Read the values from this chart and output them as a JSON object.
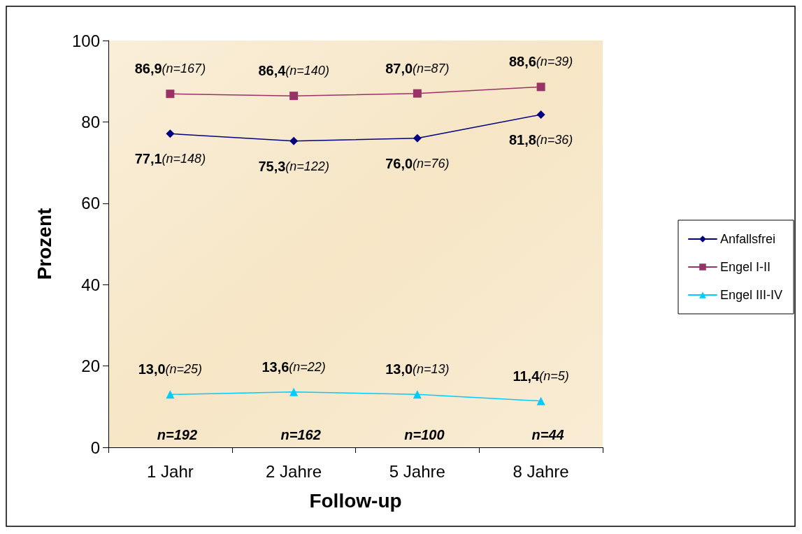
{
  "chart_data": {
    "type": "line",
    "xlabel": "Follow-up",
    "ylabel": "Prozent",
    "categories": [
      "1 Jahr",
      "2 Jahre",
      "5 Jahre",
      "8 Jahre"
    ],
    "series": [
      {
        "name": "Anfallsfrei",
        "color": "#000080",
        "marker": "diamond",
        "values": [
          77.1,
          75.3,
          76.0,
          81.8
        ],
        "value_labels": [
          "77,1(n=148)",
          "75,3(n=122)",
          "76,0(n=76)",
          "81,8(n=36)"
        ]
      },
      {
        "name": "Engel I-II",
        "color": "#993366",
        "marker": "square",
        "values": [
          86.9,
          86.4,
          87.0,
          88.6
        ],
        "value_labels": [
          "86,9(n=167)",
          "86,4(n=140)",
          "87,0(n=87)",
          "88,6(n=39)"
        ]
      },
      {
        "name": "Engel III-IV",
        "color": "#00ccff",
        "marker": "triangle",
        "values": [
          13.0,
          13.6,
          13.0,
          11.4
        ],
        "value_labels": [
          "13,0(n=25)",
          "13,6(n=22)",
          "13,0(n=13)",
          "11,4(n=5)"
        ]
      }
    ],
    "annotations": [
      "n=192",
      "n=162",
      "n=100",
      "n=44"
    ],
    "ylim": [
      0,
      100
    ],
    "yticks": [
      0,
      20,
      40,
      60,
      80,
      100
    ],
    "grid": false,
    "legend": "right",
    "line_style": "solid"
  }
}
